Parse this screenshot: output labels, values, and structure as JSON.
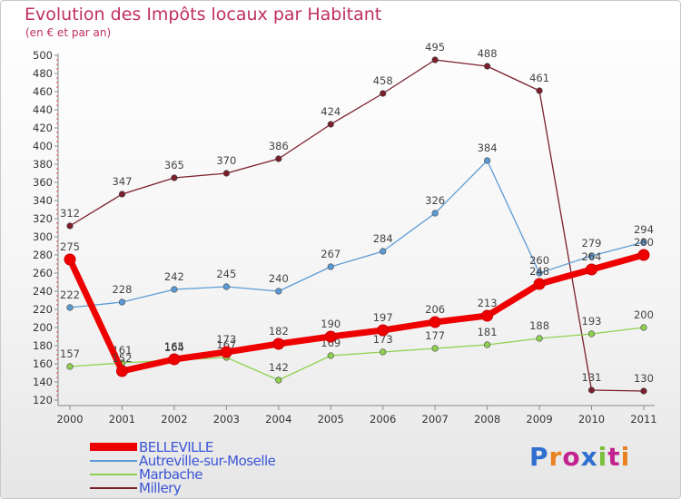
{
  "title": "Evolution des Impôts locaux par Habitant",
  "subtitle": "(en € et par an)",
  "logo_text": "Proxiti",
  "chart_data": {
    "type": "line",
    "title": "Evolution des Impôts locaux par Habitant",
    "subtitle": "(en € et par an)",
    "x": [
      "2000",
      "2001",
      "2002",
      "2003",
      "2004",
      "2005",
      "2006",
      "2007",
      "2008",
      "2009",
      "2010",
      "2011"
    ],
    "ylim": [
      120,
      500
    ],
    "ytick_step": 20,
    "grid": false,
    "legend_position": "bottom-left",
    "series": [
      {
        "name": "Millery",
        "color": "#7a1f2b",
        "values": [
          312,
          347,
          365,
          370,
          386,
          424,
          458,
          495,
          488,
          461,
          131,
          130
        ],
        "labels": [
          "312",
          "347",
          "365",
          "370",
          "386",
          "424",
          "458",
          "495",
          "488",
          "461",
          "131",
          "130"
        ]
      },
      {
        "name": "Autreville-sur-Moselle",
        "color": "#5b9bd5",
        "values": [
          222,
          228,
          242,
          245,
          240,
          267,
          284,
          326,
          384,
          260,
          279,
          294
        ],
        "labels": [
          "222",
          "228",
          "242",
          "245",
          "240",
          "267",
          "284",
          "326",
          "384",
          "260",
          "279",
          "294"
        ]
      },
      {
        "name": "Marbache",
        "color": "#8fd14f",
        "values": [
          157,
          161,
          164,
          167,
          142,
          169,
          173,
          177,
          181,
          188,
          193,
          200
        ],
        "labels": [
          "157",
          "161",
          "164",
          "167",
          "142",
          "169",
          "173",
          "177",
          "181",
          "188",
          "193",
          "200"
        ]
      },
      {
        "name": "BELLEVILLE",
        "color": "#ee0000",
        "values": [
          275,
          152,
          165,
          173,
          182,
          190,
          197,
          206,
          213,
          248,
          264,
          280
        ],
        "labels": [
          "275",
          "152",
          "165",
          "173",
          "182",
          "190",
          "197",
          "206",
          "213",
          "248",
          "264",
          "280"
        ]
      }
    ]
  }
}
